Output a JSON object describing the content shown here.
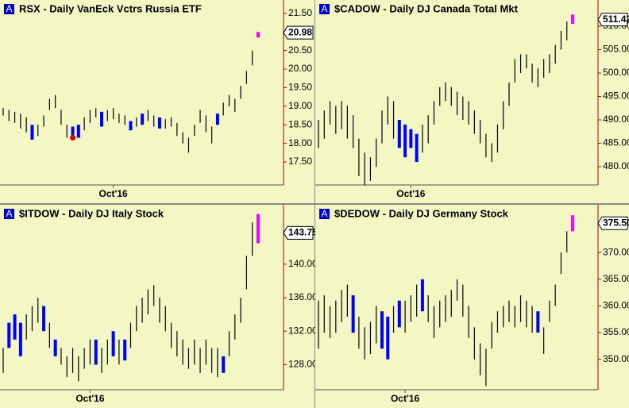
{
  "chart_data": [
    {
      "type": "ohlc",
      "title": "RSX - Daily  VanEck Vctrs Russia ETF",
      "high": [
        18.95,
        18.9,
        18.85,
        18.8,
        18.7,
        18.5,
        18.5,
        18.75,
        19.2,
        19.3,
        18.9,
        18.5,
        18.45,
        18.5,
        18.7,
        18.9,
        18.95,
        18.85,
        18.9,
        18.95,
        18.8,
        18.75,
        18.6,
        18.7,
        18.8,
        18.9,
        18.75,
        18.7,
        18.65,
        18.7,
        18.55,
        18.3,
        18.15,
        18.5,
        18.9,
        18.75,
        18.45,
        18.8,
        19.1,
        19.3,
        19.2,
        19.55,
        19.95,
        20.5,
        21.0
      ],
      "low": [
        18.75,
        18.6,
        18.55,
        18.4,
        18.3,
        18.1,
        18.2,
        18.45,
        18.9,
        18.95,
        18.5,
        18.15,
        18.1,
        18.15,
        18.35,
        18.55,
        18.7,
        18.45,
        18.6,
        18.65,
        18.55,
        18.5,
        18.35,
        18.45,
        18.5,
        18.6,
        18.45,
        18.4,
        18.4,
        18.45,
        18.2,
        18.0,
        17.75,
        18.2,
        18.55,
        18.3,
        18.0,
        18.5,
        18.75,
        19.0,
        18.85,
        19.2,
        19.6,
        20.1,
        20.85
      ],
      "colors": [
        "#000",
        "#000",
        "#000",
        "#000",
        "#000",
        "#0000ff",
        "#000",
        "#000",
        "#000",
        "#000",
        "#000",
        "#000",
        "#0000ff",
        "#0000ff",
        "#000",
        "#000",
        "#000",
        "#0000ff",
        "#000",
        "#000",
        "#000",
        "#000",
        "#0000ff",
        "#000",
        "#0000ff",
        "#000",
        "#000",
        "#0000ff",
        "#000",
        "#000",
        "#000",
        "#000",
        "#000",
        "#000",
        "#000",
        "#000",
        "#000",
        "#0000ff",
        "#000",
        "#000",
        "#000",
        "#000",
        "#000",
        "#000",
        "#ff00ff"
      ],
      "marker": {
        "index": 12,
        "value": 18.15,
        "color": "#e00000"
      },
      "last_label": 20.98,
      "ylim": [
        16.88,
        21.86
      ],
      "yticks": [
        {
          "value": 17.5,
          "label": "17.50"
        },
        {
          "value": 18,
          "label": "18.00"
        },
        {
          "value": 18.5,
          "label": "18.50"
        },
        {
          "value": 19,
          "label": "19.00"
        },
        {
          "value": 19.5,
          "label": "19.50"
        },
        {
          "value": 20,
          "label": "20.00"
        },
        {
          "value": 20.5,
          "label": "20.50"
        },
        {
          "value": 21,
          "label": "21.00"
        },
        {
          "value": 21.5,
          "label": "21.50"
        }
      ],
      "xticks": [
        {
          "value": 19,
          "label": "Oct'16"
        }
      ]
    },
    {
      "type": "ohlc",
      "title": "$CADOW - Daily  DJ Canada Total Mkt",
      "high": [
        490,
        492,
        494,
        493,
        494,
        493,
        491,
        486,
        483,
        482,
        486,
        492,
        495,
        494,
        490,
        489,
        488,
        487,
        489,
        491,
        494,
        497,
        498,
        497,
        496,
        495,
        494,
        492,
        490,
        487,
        485,
        489,
        494,
        498,
        503,
        504,
        504,
        502,
        501,
        503,
        504,
        506,
        509,
        511,
        512.5
      ],
      "low": [
        484,
        486,
        489,
        487,
        488,
        486,
        484,
        478,
        476,
        477,
        480,
        485,
        489,
        486,
        484,
        482,
        484,
        481,
        483,
        485,
        489,
        493,
        494,
        493,
        491,
        490,
        489,
        487,
        485,
        482,
        481,
        483,
        488,
        493,
        498,
        500,
        501,
        498,
        497,
        499,
        500,
        502,
        505,
        507,
        510.5
      ],
      "colors": [
        "#000",
        "#000",
        "#000",
        "#000",
        "#000",
        "#000",
        "#000",
        "#000",
        "#000",
        "#000",
        "#000",
        "#000",
        "#000",
        "#000",
        "#0000ff",
        "#0000ff",
        "#0000ff",
        "#0000ff",
        "#000",
        "#000",
        "#000",
        "#000",
        "#000",
        "#000",
        "#000",
        "#000",
        "#000",
        "#000",
        "#000",
        "#000",
        "#000",
        "#000",
        "#000",
        "#000",
        "#000",
        "#000",
        "#000",
        "#000",
        "#000",
        "#000",
        "#000",
        "#000",
        "#000",
        "#000",
        "#ff00ff"
      ],
      "last_label": 511.42,
      "ylim": [
        476.1,
        515.6
      ],
      "yticks": [
        {
          "value": 480,
          "label": "480.00"
        },
        {
          "value": 485,
          "label": "485.00"
        },
        {
          "value": 490,
          "label": "490.00"
        },
        {
          "value": 495,
          "label": "495.00"
        },
        {
          "value": 500,
          "label": "500.00"
        },
        {
          "value": 505,
          "label": "505.00"
        },
        {
          "value": 510,
          "label": "510.00"
        }
      ],
      "xticks": [
        {
          "value": 16,
          "label": "Oct'16"
        }
      ]
    },
    {
      "type": "ohlc",
      "title": "$ITDOW - Daily  DJ Italy Stock",
      "high": [
        130,
        133,
        134,
        133,
        134,
        135,
        136,
        135,
        133,
        131,
        130,
        129,
        130,
        129,
        130,
        131,
        131,
        130,
        131,
        132,
        131,
        131,
        133,
        135,
        136,
        137,
        137.5,
        136,
        135,
        133,
        132,
        131,
        130,
        131,
        130,
        131,
        130,
        130,
        129,
        132,
        134,
        136,
        141,
        145,
        146
      ],
      "low": [
        127,
        130,
        131,
        129,
        131,
        132,
        133,
        132,
        130,
        129,
        128,
        126.5,
        127,
        126,
        127.5,
        128,
        128,
        127,
        128,
        129,
        128,
        128.5,
        130,
        132,
        133,
        134,
        135,
        133,
        132,
        130,
        129,
        128,
        127.5,
        128,
        127,
        128,
        127,
        126.5,
        127,
        129,
        131,
        133,
        137,
        141,
        142.5
      ],
      "colors": [
        "#000",
        "#0000ff",
        "#0000ff",
        "#0000ff",
        "#000",
        "#000",
        "#000",
        "#0000ff",
        "#000",
        "#0000ff",
        "#000",
        "#000",
        "#000",
        "#000",
        "#000",
        "#000",
        "#0000ff",
        "#000",
        "#000",
        "#0000ff",
        "#000",
        "#0000ff",
        "#000",
        "#000",
        "#000",
        "#000",
        "#000",
        "#000",
        "#000",
        "#000",
        "#000",
        "#000",
        "#000",
        "#000",
        "#000",
        "#000",
        "#000",
        "#000",
        "#0000ff",
        "#000",
        "#000",
        "#000",
        "#000",
        "#000",
        "#ff00ff"
      ],
      "last_label": 143.75,
      "ylim": [
        125.0,
        147.1
      ],
      "yticks": [
        {
          "value": 128,
          "label": "128.00"
        },
        {
          "value": 132,
          "label": "132.00"
        },
        {
          "value": 136,
          "label": "136.00"
        },
        {
          "value": 140,
          "label": "140.00"
        }
      ],
      "xticks": [
        {
          "value": 15,
          "label": "Oct'16"
        }
      ]
    },
    {
      "type": "ohlc",
      "title": "$DEDOW - Daily  DJ Germany Stock",
      "high": [
        361,
        362,
        360,
        361,
        363,
        364,
        362,
        358,
        356,
        357,
        360,
        359,
        358,
        360,
        361,
        361,
        362,
        364,
        365,
        362,
        360,
        361,
        362,
        363,
        365,
        364,
        360,
        356,
        353,
        352,
        357,
        359,
        360,
        361,
        360,
        362,
        361,
        360,
        359,
        356,
        361,
        364,
        370,
        374,
        377
      ],
      "low": [
        352,
        355,
        354,
        355,
        357,
        358,
        355,
        352,
        350,
        351,
        353,
        352,
        350,
        355,
        356,
        355,
        357,
        358,
        359,
        357,
        354,
        356,
        357,
        358,
        361,
        358,
        354,
        350,
        347,
        345,
        352,
        355,
        356,
        357,
        356,
        357,
        356,
        355,
        355,
        351,
        357,
        360,
        366,
        370,
        374
      ],
      "colors": [
        "#000",
        "#000",
        "#000",
        "#000",
        "#000",
        "#000",
        "#0000ff",
        "#000",
        "#000",
        "#000",
        "#000",
        "#0000ff",
        "#0000ff",
        "#000",
        "#0000ff",
        "#000",
        "#000",
        "#000",
        "#0000ff",
        "#000",
        "#000",
        "#000",
        "#000",
        "#000",
        "#000",
        "#000",
        "#000",
        "#000",
        "#000",
        "#000",
        "#000",
        "#000",
        "#000",
        "#000",
        "#000",
        "#000",
        "#000",
        "#000",
        "#0000ff",
        "#000",
        "#000",
        "#000",
        "#000",
        "#000",
        "#ff00ff"
      ],
      "last_label": {
        "value": 375.5,
        "label": "375.50"
      },
      "ylim": [
        344.3,
        378.96
      ],
      "yticks": [
        {
          "value": 350,
          "label": "350.00"
        },
        {
          "value": 355,
          "label": "355.00"
        },
        {
          "value": 360,
          "label": "360.00"
        },
        {
          "value": 365,
          "label": "365.00"
        },
        {
          "value": 370,
          "label": "370.00"
        }
      ],
      "xticks": [
        {
          "value": 15,
          "label": "Oct'16"
        }
      ]
    }
  ]
}
